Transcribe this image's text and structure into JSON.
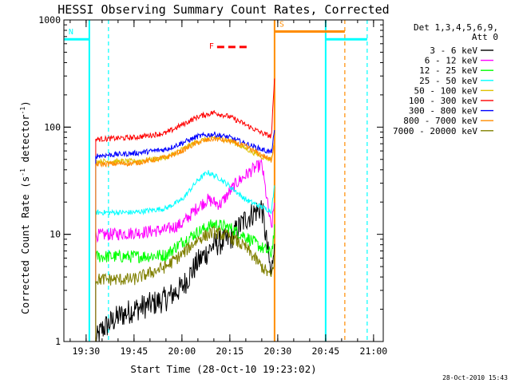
{
  "chart_data": {
    "type": "line",
    "title": "HESSI Observing Summary Count Rates, Corrected",
    "xlabel": "Start Time (28-Oct-10 19:23:02)",
    "ylabel": "Corrected Count Rate (s⁻¹ detector⁻¹)",
    "yscale": "log",
    "ylim": [
      1,
      1000
    ],
    "xlim_minutes_since_19_23_02": [
      0,
      100
    ],
    "x_ticks": [
      "19:30",
      "19:45",
      "20:00",
      "20:15",
      "20:30",
      "20:45",
      "21:00"
    ],
    "y_ticks": [
      "1",
      "10",
      "100",
      "1000"
    ],
    "grid": false,
    "legend_placement": "top-right",
    "legend_header": [
      "Det 1,3,4,5,6,9,",
      "Att 0"
    ],
    "series": [
      {
        "name": "3 - 6 keV",
        "color": "#000000",
        "x": [
          "19:33",
          "19:35",
          "19:40",
          "19:45",
          "19:50",
          "19:55",
          "20:00",
          "20:05",
          "20:10",
          "20:15",
          "20:20",
          "20:25",
          "20:28",
          "20:29"
        ],
        "values": [
          1,
          1.3,
          1.7,
          2.0,
          2.2,
          2.5,
          3.2,
          5.5,
          8,
          9,
          14,
          18,
          4,
          10
        ]
      },
      {
        "name": "6 - 12 keV",
        "color": "#ff00ff",
        "x": [
          "19:33",
          "19:45",
          "19:55",
          "20:00",
          "20:05",
          "20:08",
          "20:12",
          "20:17",
          "20:22",
          "20:25",
          "20:28",
          "20:29"
        ],
        "values": [
          9.8,
          10.3,
          11,
          12.5,
          18,
          21,
          19,
          30,
          40,
          45,
          11,
          20
        ]
      },
      {
        "name": "12 - 25 keV",
        "color": "#00ff00",
        "x": [
          "19:33",
          "19:45",
          "19:55",
          "20:00",
          "20:05",
          "20:10",
          "20:15",
          "20:20",
          "20:25",
          "20:28",
          "20:29"
        ],
        "values": [
          6.2,
          6.2,
          6.4,
          8.5,
          10.5,
          12.5,
          11.5,
          9.5,
          7.5,
          6.6,
          11
        ]
      },
      {
        "name": "25 - 50 keV",
        "color": "#00ffff",
        "x": [
          "19:33",
          "19:45",
          "19:55",
          "20:00",
          "20:05",
          "20:08",
          "20:12",
          "20:15",
          "20:20",
          "20:25",
          "20:28",
          "20:29"
        ],
        "values": [
          16,
          16,
          17.5,
          21,
          32,
          38,
          33,
          28,
          21,
          18,
          16.5,
          28
        ]
      },
      {
        "name": "50 - 100 keV",
        "color": "#e0c000",
        "x": [
          "19:33",
          "19:45",
          "19:55",
          "20:00",
          "20:05",
          "20:10",
          "20:15",
          "20:20",
          "20:25",
          "20:28",
          "20:29"
        ],
        "values": [
          48,
          48,
          52,
          62,
          74,
          80,
          75,
          63,
          53,
          50,
          72
        ]
      },
      {
        "name": "100 - 300 keV",
        "color": "#ff0000",
        "x": [
          "19:33",
          "19:45",
          "19:55",
          "20:00",
          "20:05",
          "20:10",
          "20:15",
          "20:20",
          "20:25",
          "20:28",
          "20:29"
        ],
        "values": [
          77,
          80,
          88,
          105,
          125,
          137,
          125,
          105,
          88,
          82,
          280
        ]
      },
      {
        "name": "300 - 800 keV",
        "color": "#0000ff",
        "x": [
          "19:33",
          "19:45",
          "19:55",
          "20:00",
          "20:05",
          "20:10",
          "20:15",
          "20:20",
          "20:25",
          "20:28",
          "20:29"
        ],
        "values": [
          54,
          57,
          62,
          71,
          82,
          86,
          80,
          70,
          62,
          58,
          90
        ]
      },
      {
        "name": "800 - 7000 keV",
        "color": "#ff8c00",
        "x": [
          "19:33",
          "19:45",
          "19:55",
          "20:00",
          "20:05",
          "20:10",
          "20:15",
          "20:20",
          "20:25",
          "20:28",
          "20:29"
        ],
        "values": [
          45,
          46,
          52,
          60,
          72,
          78,
          74,
          66,
          55,
          49,
          75
        ]
      },
      {
        "name": "7000 - 20000 keV",
        "color": "#808000",
        "x": [
          "19:33",
          "19:45",
          "19:55",
          "20:00",
          "20:05",
          "20:10",
          "20:15",
          "20:20",
          "20:25",
          "20:28",
          "20:29"
        ],
        "values": [
          3.8,
          3.8,
          5,
          6.5,
          9,
          10.5,
          9.5,
          7.5,
          5,
          4,
          6
        ]
      }
    ],
    "flag_bars": [
      {
        "label": "N",
        "color": "#00ffff",
        "x": [
          "19:23",
          "19:31"
        ],
        "y": 660
      },
      {
        "label": "",
        "color": "#00ffff",
        "x": [
          "20:45",
          "20:58"
        ],
        "y": 660
      },
      {
        "label": "S",
        "color": "#ff8c00",
        "x": [
          "20:29",
          "20:51"
        ],
        "y": 780
      },
      {
        "label": "F",
        "color": "#ff0000",
        "x": [
          "20:11",
          "20:21"
        ],
        "y": 560
      }
    ],
    "vertical_lines": [
      {
        "color": "#00ffff",
        "style": "dashed",
        "x": "19:37"
      },
      {
        "color": "#00ffff",
        "style": "solid",
        "x": "19:31"
      },
      {
        "color": "#00ffff",
        "style": "solid",
        "x": "20:45"
      },
      {
        "color": "#00ffff",
        "style": "dashed",
        "x": "20:58"
      },
      {
        "color": "#ff8c00",
        "style": "solid",
        "x": "20:29"
      },
      {
        "color": "#ff8c00",
        "style": "dashed",
        "x": "20:51"
      }
    ]
  },
  "footer": {
    "timestamp": "28-Oct-2010 15:43"
  }
}
